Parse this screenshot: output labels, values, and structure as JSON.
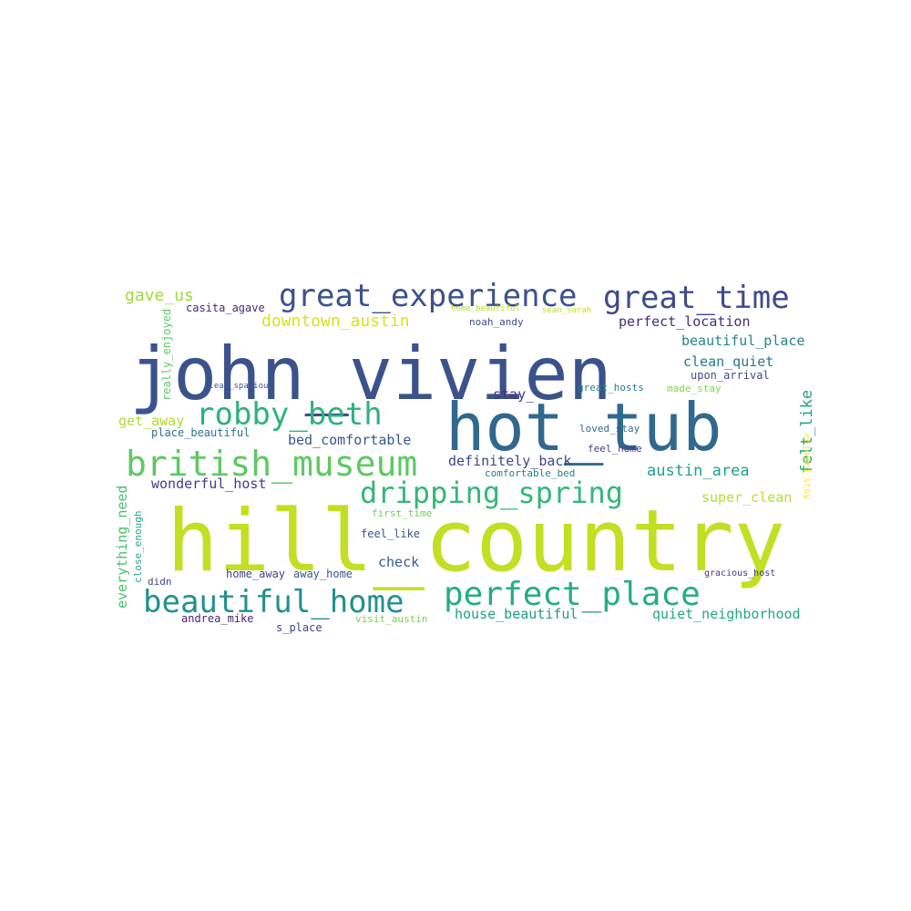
{
  "words": [
    {
      "text": "hill_country",
      "color": "#c2df23",
      "rot": 0
    },
    {
      "text": "john_vivien",
      "color": "#3b528b",
      "rot": 0
    },
    {
      "text": "hot_tub",
      "color": "#31688e",
      "rot": 0
    },
    {
      "text": "great_experience",
      "color": "#3b528b",
      "rot": 0
    },
    {
      "text": "great_time",
      "color": "#3e4a89",
      "rot": 0
    },
    {
      "text": "british_museum",
      "color": "#5ec962",
      "rot": 0
    },
    {
      "text": "robby_beth",
      "color": "#2db27d",
      "rot": 0
    },
    {
      "text": "dripping_spring",
      "color": "#35b779",
      "rot": 0
    },
    {
      "text": "beautiful_home",
      "color": "#21918c",
      "rot": 0
    },
    {
      "text": "perfect_place",
      "color": "#26ad81",
      "rot": 0
    },
    {
      "text": "gave_us",
      "color": "#a0da39",
      "rot": 0
    },
    {
      "text": "downtown_austin",
      "color": "#d8e219",
      "rot": 0
    },
    {
      "text": "casita_agave",
      "color": "#482878",
      "rot": 0
    },
    {
      "text": "perfect_location",
      "color": "#472d7b",
      "rot": 0
    },
    {
      "text": "beautiful_place",
      "color": "#25848e",
      "rot": 0
    },
    {
      "text": "clean_quiet",
      "color": "#2a788e",
      "rot": 0
    },
    {
      "text": "upon_arrival",
      "color": "#3e4989",
      "rot": 0
    },
    {
      "text": "made_stay",
      "color": "#84d44b",
      "rot": 0
    },
    {
      "text": "great_hosts",
      "color": "#287d8e",
      "rot": 0
    },
    {
      "text": "stay_",
      "color": "#46327e",
      "rot": 0
    },
    {
      "text": "get_away",
      "color": "#addc30",
      "rot": 0
    },
    {
      "text": "place_beautiful",
      "color": "#2c728e",
      "rot": 0
    },
    {
      "text": "bed_comfortable",
      "color": "#39568c",
      "rot": 0
    },
    {
      "text": "loved_stay",
      "color": "#2e6e8e",
      "rot": 0
    },
    {
      "text": "feel_home",
      "color": "#433e85",
      "rot": 0
    },
    {
      "text": "definitely_back",
      "color": "#414487",
      "rot": 0
    },
    {
      "text": "austin_area",
      "color": "#1fa187",
      "rot": 0
    },
    {
      "text": "comfortable_bed",
      "color": "#277f8e",
      "rot": 0
    },
    {
      "text": "wonderful_host",
      "color": "#443a83",
      "rot": 0
    },
    {
      "text": "super_clean",
      "color": "#b5de2b",
      "rot": 0
    },
    {
      "text": "first_time",
      "color": "#70cf57",
      "rot": 0
    },
    {
      "text": "feel_like",
      "color": "#3b528b",
      "rot": 0
    },
    {
      "text": "check",
      "color": "#355f8d",
      "rot": 0
    },
    {
      "text": "didn",
      "color": "#3e4a89",
      "rot": 0
    },
    {
      "text": "home_away",
      "color": "#404688",
      "rot": 0
    },
    {
      "text": "away_home",
      "color": "#38588c",
      "rot": 0
    },
    {
      "text": "gracious_host",
      "color": "#453781",
      "rot": 0
    },
    {
      "text": "andrea_mike",
      "color": "#481f70",
      "rot": 0
    },
    {
      "text": "s_place",
      "color": "#404688",
      "rot": 0
    },
    {
      "text": "visit_austin",
      "color": "#7ad151",
      "rot": 0
    },
    {
      "text": "house_beautiful",
      "color": "#1f9e89",
      "rot": 0
    },
    {
      "text": "quiet_neighborhood",
      "color": "#22a785",
      "rot": 0
    },
    {
      "text": "noah_andy",
      "color": "#3d4d8a",
      "rot": 0
    },
    {
      "text": "home_beautiful",
      "color": "#b8de29",
      "rot": 0
    },
    {
      "text": "sean_sarah",
      "color": "#c0df25",
      "rot": 0
    },
    {
      "text": "clean_spacious",
      "color": "#3a548c",
      "rot": 0
    },
    {
      "text": "really_enjoyed",
      "color": "#5ec962",
      "rot": -90
    },
    {
      "text": "everything_need",
      "color": "#4ac16d",
      "rot": -90
    },
    {
      "text": "close_enough",
      "color": "#25ac82",
      "rot": -90
    },
    {
      "text": "felt_like",
      "color": "#20a386",
      "rot": -90
    },
    {
      "text": "enjoyed_stay",
      "color": "#fde725",
      "rot": 90
    }
  ]
}
